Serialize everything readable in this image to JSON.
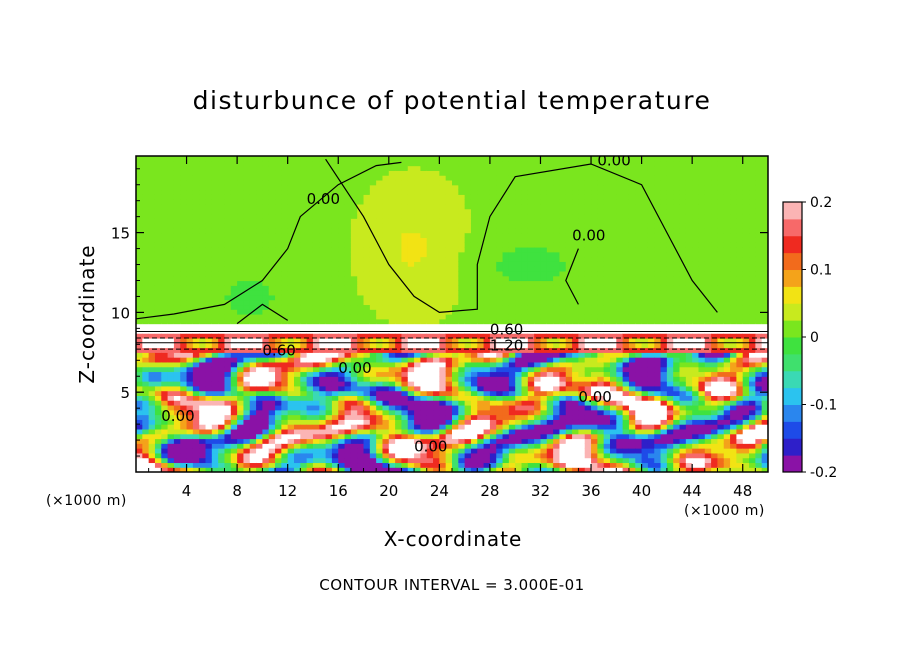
{
  "chart_data": {
    "type": "heatmap",
    "title": "disturbunce of potential temperature",
    "xlabel": "X-coordinate",
    "ylabel": "Z-coordinate",
    "x_unit": "(×1000 m)",
    "z_unit": "(×1000 m)",
    "x_ticks": [
      4,
      8,
      12,
      16,
      20,
      24,
      28,
      32,
      36,
      40,
      44,
      48
    ],
    "y_ticks": [
      5,
      10,
      15
    ],
    "xlim": [
      0,
      50
    ],
    "ylim": [
      0,
      19.8
    ],
    "colorbar": {
      "min": -0.2,
      "max": 0.2,
      "ticks": [
        "0.2",
        "0.1",
        "0",
        "-0.1",
        "-0.2"
      ],
      "colors": [
        "#8a12a6",
        "#2e1fc9",
        "#1e4be8",
        "#2a86ee",
        "#2bc3ef",
        "#3ad9b4",
        "#3fe06d",
        "#3fe23f",
        "#7ae61e",
        "#c8ea1e",
        "#f2e314",
        "#f4a31a",
        "#f26b1c",
        "#ef2a20",
        "#f76969",
        "#fbb4b4"
      ]
    },
    "contour_interval_label": "CONTOUR INTERVAL = 3.000E-01",
    "contour_labels": [
      "0.00",
      "0.00",
      "0.00",
      "0.00",
      "0.60",
      "0.60",
      "1.20",
      "0.00",
      "0.00",
      "0.00"
    ],
    "upper_field_value": 0.0,
    "inversion_z": 9.0
  }
}
